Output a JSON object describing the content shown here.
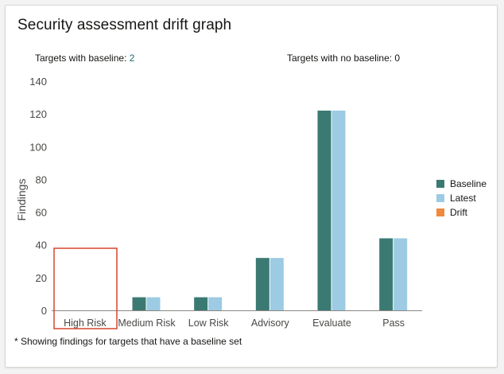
{
  "card": {
    "title": "Security assessment drift graph",
    "targets_with_baseline_label": "Targets with baseline:",
    "targets_with_baseline_value": "2",
    "targets_no_baseline_label": "Targets with no baseline:",
    "targets_no_baseline_value": "0",
    "footnote": "* Showing findings for targets that have a baseline set"
  },
  "colors": {
    "baseline": "#3b7a72",
    "latest": "#9ccbe3",
    "drift": "#f08a3e",
    "highlight": "#d4472f",
    "axis": "#8a8784",
    "text": "#4a4846"
  },
  "chart_data": {
    "type": "bar",
    "ylabel": "Findings",
    "ylim": [
      0,
      140
    ],
    "yticks": [
      0,
      20,
      40,
      60,
      80,
      100,
      120,
      140
    ],
    "categories": [
      "High Risk",
      "Medium Risk",
      "Low Risk",
      "Advisory",
      "Evaluate",
      "Pass"
    ],
    "series": [
      {
        "name": "Baseline",
        "values": [
          0,
          8,
          8,
          32,
          122,
          44
        ]
      },
      {
        "name": "Latest",
        "values": [
          0,
          8,
          8,
          32,
          122,
          44
        ]
      },
      {
        "name": "Drift",
        "values": [
          0,
          0,
          0,
          0,
          0,
          0
        ]
      }
    ],
    "legend": "right",
    "highlighted_category": "High Risk"
  }
}
